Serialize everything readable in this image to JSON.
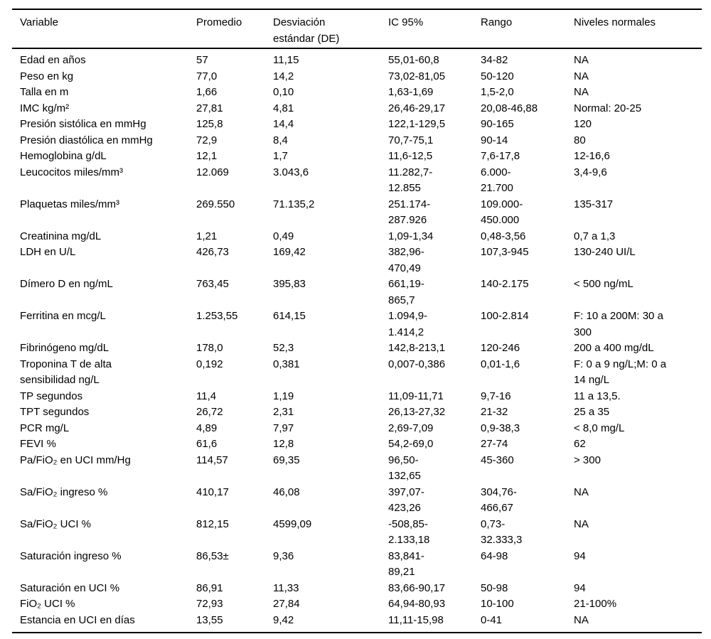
{
  "table": {
    "column_keys": [
      "variable",
      "promedio",
      "de",
      "ic95",
      "rango",
      "niveles"
    ],
    "columns": [
      {
        "key": "variable",
        "label": "Variable"
      },
      {
        "key": "promedio",
        "label": "Promedio"
      },
      {
        "key": "de",
        "label": "Desviación\nestándar (DE)"
      },
      {
        "key": "ic95",
        "label": "IC 95%"
      },
      {
        "key": "rango",
        "label": "Rango"
      },
      {
        "key": "niveles",
        "label": "Niveles normales"
      }
    ],
    "rows": [
      {
        "variable": "Edad en años",
        "promedio": "57",
        "de": "11,15",
        "ic95": "55,01-60,8",
        "rango": "34-82",
        "niveles": "NA"
      },
      {
        "variable": "Peso en kg",
        "promedio": "77,0",
        "de": "14,2",
        "ic95": "73,02-81,05",
        "rango": "50-120",
        "niveles": "NA"
      },
      {
        "variable": "Talla en m",
        "promedio": "1,66",
        "de": "0,10",
        "ic95": "1,63-1,69",
        "rango": "1,5-2,0",
        "niveles": "NA"
      },
      {
        "variable": "IMC kg/m²",
        "promedio": "27,81",
        "de": "4,81",
        "ic95": "26,46-29,17",
        "rango": "20,08-46,88",
        "niveles": "Normal: 20-25"
      },
      {
        "variable": "Presión sistólica en mmHg",
        "promedio": "125,8",
        "de": "14,4",
        "ic95": "122,1-129,5",
        "rango": "90-165",
        "niveles": "120"
      },
      {
        "variable": "Presión diastólica en mmHg",
        "promedio": "72,9",
        "de": "8,4",
        "ic95": "70,7-75,1",
        "rango": "90-14",
        "niveles": "80"
      },
      {
        "variable": "Hemoglobina g/dL",
        "promedio": "12,1",
        "de": "1,7",
        "ic95": "11,6-12,5",
        "rango": "7,6-17,8",
        "niveles": "12-16,6"
      },
      {
        "variable": "Leucocitos miles/mm³",
        "promedio": "12.069",
        "de": "3.043,6",
        "ic95": "11.282,7-\n12.855",
        "rango": "6.000-\n21.700",
        "niveles": "3,4-9,6"
      },
      {
        "variable": "Plaquetas miles/mm³",
        "promedio": "269.550",
        "de": "71.135,2",
        "ic95": "251.174-\n287.926",
        "rango": "109.000-\n450.000",
        "niveles": "135-317"
      },
      {
        "variable": "Creatinina mg/dL",
        "promedio": "1,21",
        "de": "0,49",
        "ic95": "1,09-1,34",
        "rango": "0,48-3,56",
        "niveles": "0,7 a 1,3"
      },
      {
        "variable": "LDH en U/L",
        "promedio": "426,73",
        "de": "169,42",
        "ic95": "382,96-\n470,49",
        "rango": "107,3-945",
        "niveles": "130-240 UI/L"
      },
      {
        "variable": "Dímero D en ng/mL",
        "promedio": "763,45",
        "de": "395,83",
        "ic95": "661,19-\n865,7",
        "rango": "140-2.175",
        "niveles": "< 500 ng/mL"
      },
      {
        "variable": "Ferritina en mcg/L",
        "promedio": "1.253,55",
        "de": "614,15",
        "ic95": "1.094,9-\n1.414,2",
        "rango": "100-2.814",
        "niveles": "F: 10 a 200M: 30 a\n300"
      },
      {
        "variable": "Fibrinógeno mg/dL",
        "promedio": "178,0",
        "de": "52,3",
        "ic95": "142,8-213,1",
        "rango": "120-246",
        "niveles": "200 a 400 mg/dL"
      },
      {
        "variable": "Troponina T de alta\nsensibilidad ng/L",
        "promedio": "0,192",
        "de": "0,381",
        "ic95": "0,007-0,386",
        "rango": "0,01-1,6",
        "niveles": "F: 0 a 9 ng/L;M: 0 a\n14 ng/L"
      },
      {
        "variable": "TP segundos",
        "promedio": "11,4",
        "de": "1,19",
        "ic95": "11,09-11,71",
        "rango": "9,7-16",
        "niveles": "11 a 13,5."
      },
      {
        "variable": "TPT segundos",
        "promedio": "26,72",
        "de": "2,31",
        "ic95": "26,13-27,32",
        "rango": "21-32",
        "niveles": "25 a 35"
      },
      {
        "variable": "PCR mg/L",
        "promedio": "4,89",
        "de": "7,97",
        "ic95": "2,69-7,09",
        "rango": "0,9-38,3",
        "niveles": "< 8,0 mg/L"
      },
      {
        "variable": "FEVI %",
        "promedio": "61,6",
        "de": "12,8",
        "ic95": "54,2-69,0",
        "rango": "27-74",
        "niveles": "62"
      },
      {
        "variable": "Pa/FiO₂ en UCI mm/Hg",
        "promedio": "114,57",
        "de": "69,35",
        "ic95": "96,50-\n132,65",
        "rango": "45-360",
        "niveles": "> 300"
      },
      {
        "variable": "Sa/FiO₂ ingreso %",
        "promedio": "410,17",
        "de": "46,08",
        "ic95": "397,07-\n423,26",
        "rango": "304,76-\n466,67",
        "niveles": "NA"
      },
      {
        "variable": "Sa/FiO₂ UCI %",
        "promedio": "812,15",
        "de": "4599,09",
        "ic95": "-508,85-\n2.133,18",
        "rango": "0,73-\n32.333,3",
        "niveles": "NA"
      },
      {
        "variable": "Saturación ingreso %",
        "promedio": "86,53±",
        "de": "9,36",
        "ic95": "83,841-\n89,21",
        "rango": "64-98",
        "niveles": "94"
      },
      {
        "variable": "Saturación en UCI %",
        "promedio": "86,91",
        "de": "11,33",
        "ic95": "83,66-90,17",
        "rango": "50-98",
        "niveles": "94"
      },
      {
        "variable": "FiO₂ UCI %",
        "promedio": "72,93",
        "de": "27,84",
        "ic95": "64,94-80,93",
        "rango": "10-100",
        "niveles": "21-100%"
      },
      {
        "variable": "Estancia en UCI en días",
        "promedio": "13,55",
        "de": "9,42",
        "ic95": "11,11-15,98",
        "rango": "0-41",
        "niveles": "NA"
      }
    ]
  }
}
